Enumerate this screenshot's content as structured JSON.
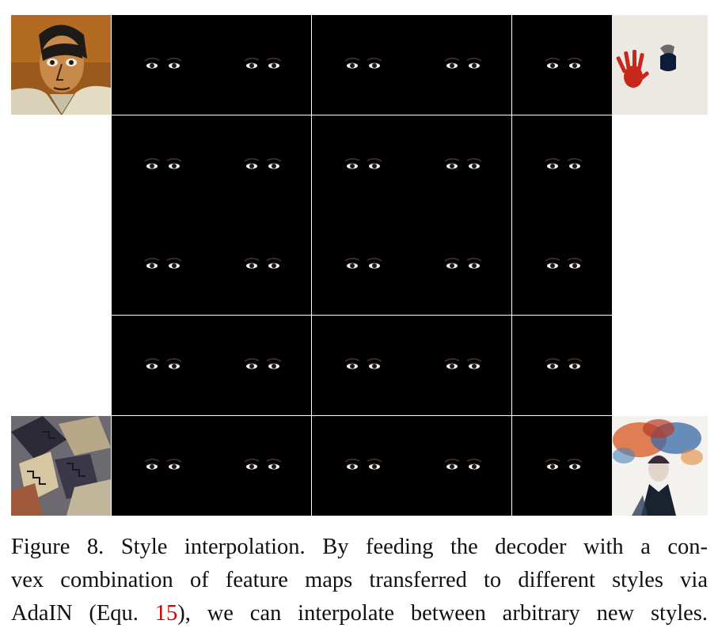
{
  "figure": {
    "styles": {
      "top_left": "portrait-style",
      "top_right": "handprint-style",
      "bottom_left": "cubist-stairs-style",
      "bottom_right": "watercolor-splash-style"
    },
    "grid": {
      "rows": 5,
      "cols": 5
    },
    "colors": {
      "warm": "#c8902e",
      "light": "#ece3dc",
      "dark": "#2c2a30",
      "lip_red": "#c21b3c",
      "lip_purple": "#8a2a6e"
    }
  },
  "caption": {
    "line1_prefix": "Figure 8. Style interpolation.  By feeding the decoder with a con-",
    "line2": "vex combination of feature maps transferred to different styles via",
    "line3_before_ref": "AdaIN (Equ. ",
    "ref": "15",
    "line3_after_ref": "), we can interpolate between arbitrary new styles."
  }
}
